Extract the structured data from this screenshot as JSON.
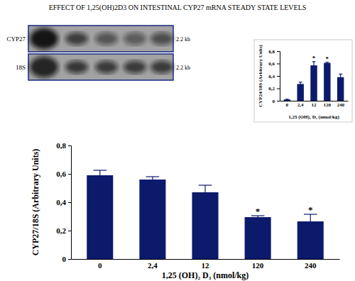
{
  "blot": {
    "rows": [
      {
        "label": "CYP27",
        "size": "2.2 kb"
      },
      {
        "label": "18S",
        "size": "2.2 kb"
      }
    ]
  },
  "chart_data": [
    {
      "type": "bar",
      "title": "EFFECT OF 1,25(OH)2D3 ON INTESTINAL CYP27 mRNA STEADY STATE LEVELS",
      "y_label": "CYP27/18S (Arbitrary Units)",
      "x_label": "1,25 (OH)₂ D₃ (nmol/kg)",
      "categories": [
        "0",
        "2,4",
        "12",
        "120",
        "240"
      ],
      "values": [
        0.59,
        0.56,
        0.47,
        0.295,
        0.265
      ],
      "errors": [
        0.035,
        0.02,
        0.05,
        0.01,
        0.05
      ],
      "significance": [
        null,
        null,
        null,
        "*",
        "*"
      ],
      "color": "#0b1a6b",
      "ylim": [
        0,
        0.8
      ],
      "yticks": [
        0,
        {
          "value": 0.2,
          "label": "0,2"
        },
        {
          "value": 0.4,
          "label": "0,4"
        },
        {
          "value": 0.6,
          "label": "0,6"
        },
        {
          "value": 0.8,
          "label": "0,8"
        }
      ]
    },
    {
      "type": "bar",
      "y_label": "CYP24/18S (Arbitrary Units)",
      "x_label": "1,25 (OH)₂ D₃ (nmol/kg)",
      "categories": [
        "0",
        "2,4",
        "12",
        "120",
        "240"
      ],
      "values": [
        0.02,
        0.27,
        0.57,
        0.61,
        0.38
      ],
      "errors": [
        0.005,
        0.03,
        0.06,
        0.01,
        0.05
      ],
      "significance": [
        null,
        null,
        "*",
        "*",
        null
      ],
      "color": "#0b1a6b",
      "ylim": [
        0,
        0.8
      ],
      "yticks": [
        0,
        {
          "value": 0.2,
          "label": "0,2"
        },
        {
          "value": 0.4,
          "label": "0,4"
        },
        {
          "value": 0.6,
          "label": "0,6"
        },
        {
          "value": 0.8,
          "label": "0,8"
        }
      ]
    }
  ]
}
